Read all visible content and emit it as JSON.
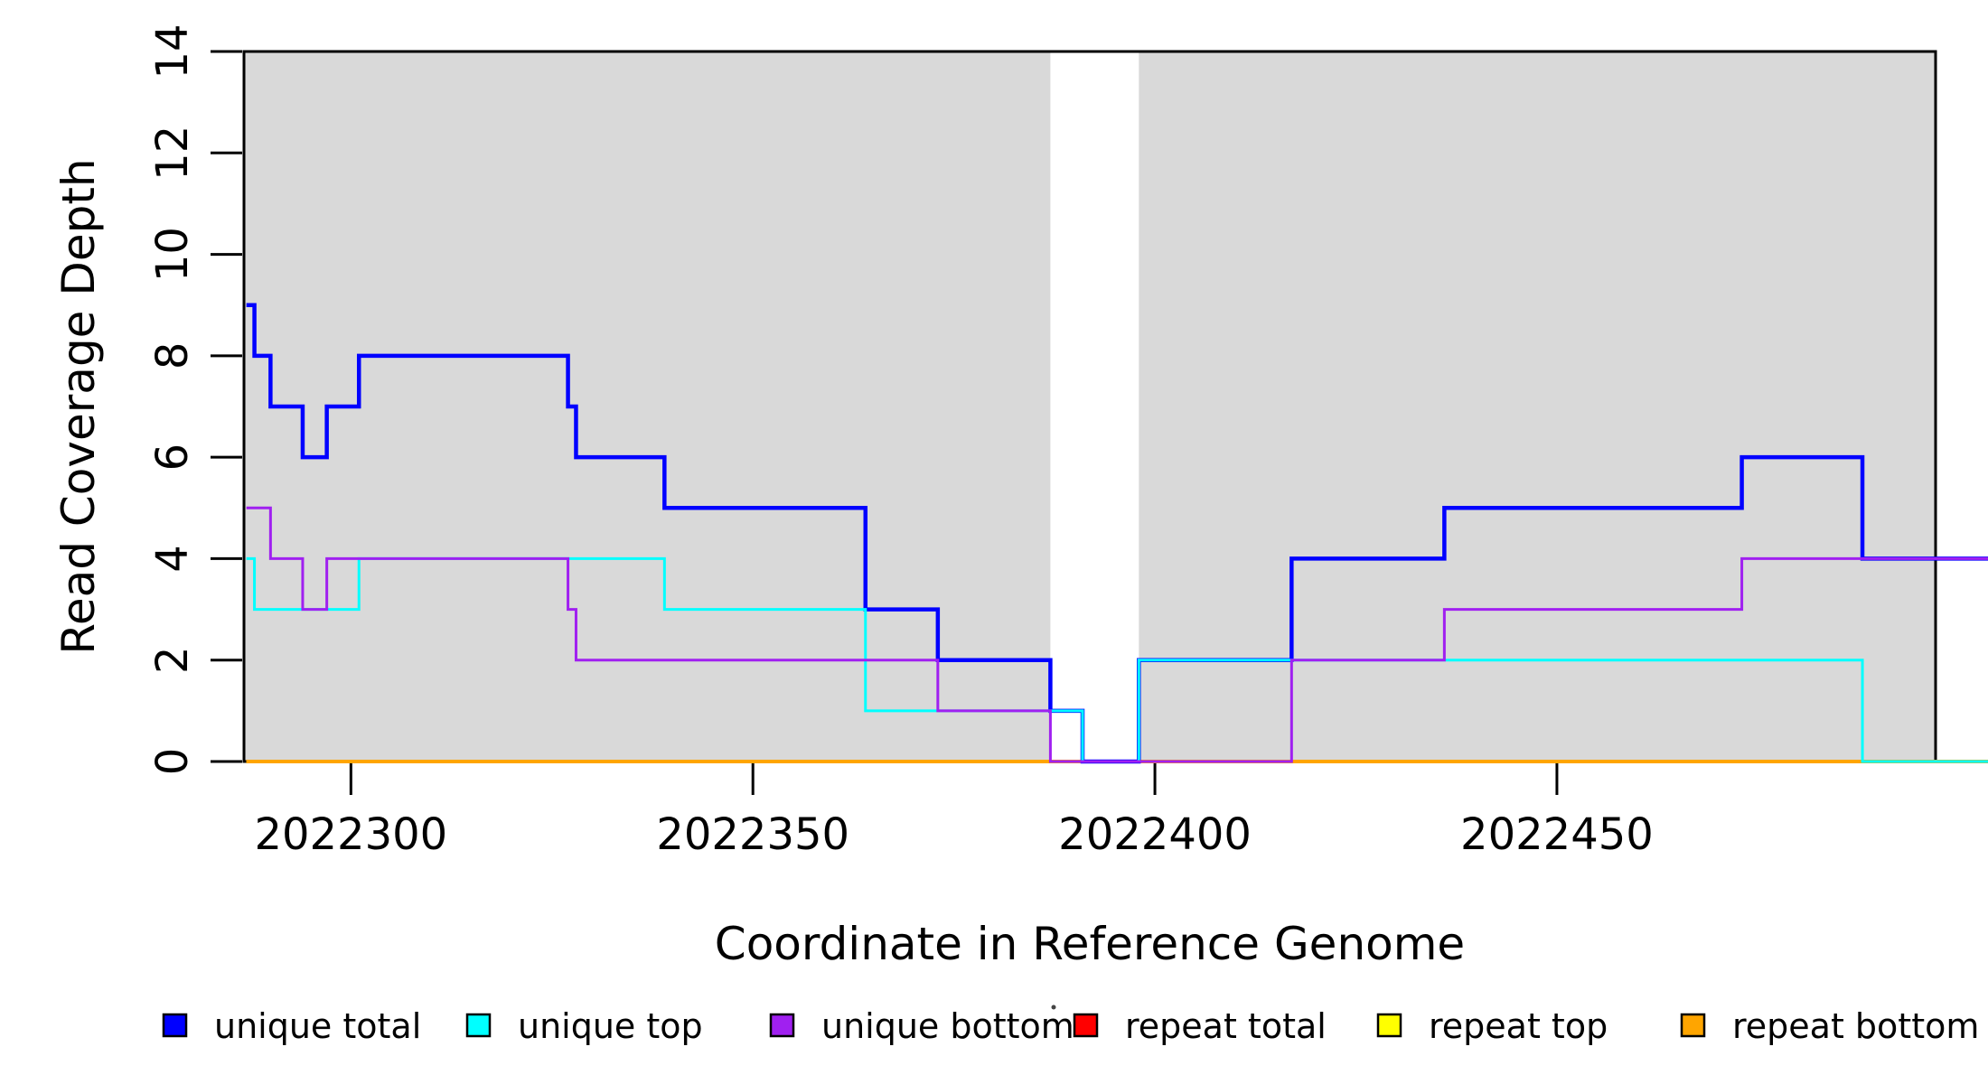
{
  "figure": {
    "background_color": "#ffffff",
    "region_color": "#D9D9D9",
    "axis_color": "#000000"
  },
  "chart_data": {
    "type": "line",
    "subtype": "step-post",
    "title": "",
    "xlabel": "Coordinate in Reference Genome",
    "ylabel": "Read Coverage Depth",
    "xlim": [
      2022286.7,
      2022497.1
    ],
    "ylim": [
      0,
      14
    ],
    "x_ticks": [
      2022300,
      2022350,
      2022400,
      2022450
    ],
    "y_ticks": [
      0,
      2,
      4,
      6,
      8,
      10,
      12,
      14
    ],
    "grid": false,
    "legend_position": "bottom",
    "shaded_regions": [
      {
        "start": 2022286.7,
        "end": 2022387
      },
      {
        "start": 2022398,
        "end": 2022497.1
      }
    ],
    "gap_region": {
      "start": 2022387,
      "end": 2022398
    },
    "series": [
      {
        "name": "repeat total",
        "color": "#FF0000",
        "width": 4,
        "segments": [
          [
            2022287,
            2022504,
            0
          ]
        ]
      },
      {
        "name": "repeat top",
        "color": "#FFFF00",
        "width": 4,
        "segments": [
          [
            2022287,
            2022504,
            0
          ]
        ]
      },
      {
        "name": "repeat bottom",
        "color": "#FFA500",
        "width": 4,
        "segments": [
          [
            2022287,
            2022504,
            0
          ]
        ]
      },
      {
        "name": "unique total",
        "color": "#0000FF",
        "width": 4.5,
        "segments": [
          [
            2022287,
            2022288,
            9
          ],
          [
            2022288,
            2022290,
            8
          ],
          [
            2022290,
            2022294,
            7
          ],
          [
            2022294,
            2022297,
            6
          ],
          [
            2022297,
            2022301,
            7
          ],
          [
            2022301,
            2022327,
            8
          ],
          [
            2022327,
            2022328,
            7
          ],
          [
            2022328,
            2022339,
            6
          ],
          [
            2022339,
            2022364,
            5
          ],
          [
            2022364,
            2022373,
            3
          ],
          [
            2022373,
            2022387,
            2
          ],
          [
            2022387,
            2022391,
            1
          ],
          [
            2022391,
            2022398,
            0
          ],
          [
            2022398,
            2022417,
            2
          ],
          [
            2022417,
            2022436,
            4
          ],
          [
            2022436,
            2022473,
            5
          ],
          [
            2022473,
            2022488,
            6
          ],
          [
            2022488,
            2022504,
            4
          ]
        ]
      },
      {
        "name": "unique top",
        "color": "#00FFFF",
        "width": 3,
        "segments": [
          [
            2022287,
            2022288,
            4
          ],
          [
            2022288,
            2022301,
            3
          ],
          [
            2022301,
            2022339,
            4
          ],
          [
            2022339,
            2022364,
            3
          ],
          [
            2022364,
            2022391,
            1
          ],
          [
            2022391,
            2022398,
            0
          ],
          [
            2022398,
            2022488,
            2
          ],
          [
            2022488,
            2022504,
            0
          ]
        ]
      },
      {
        "name": "unique bottom",
        "color": "#A020F0",
        "width": 3,
        "segments": [
          [
            2022287,
            2022290,
            5
          ],
          [
            2022290,
            2022294,
            4
          ],
          [
            2022294,
            2022297,
            3
          ],
          [
            2022297,
            2022327,
            4
          ],
          [
            2022327,
            2022328,
            3
          ],
          [
            2022328,
            2022373,
            2
          ],
          [
            2022373,
            2022387,
            1
          ],
          [
            2022387,
            2022417,
            0
          ],
          [
            2022417,
            2022436,
            2
          ],
          [
            2022436,
            2022473,
            3
          ],
          [
            2022473,
            2022504,
            4
          ]
        ]
      }
    ],
    "legend": [
      {
        "label": "unique total",
        "color": "#0000FF"
      },
      {
        "label": "unique top",
        "color": "#00FFFF"
      },
      {
        "label": "unique bottom",
        "color": "#A020F0"
      },
      {
        "label": "repeat total",
        "color": "#FF0000"
      },
      {
        "label": "repeat top",
        "color": "#FFFF00"
      },
      {
        "label": "repeat bottom",
        "color": "#FFA500"
      }
    ]
  }
}
